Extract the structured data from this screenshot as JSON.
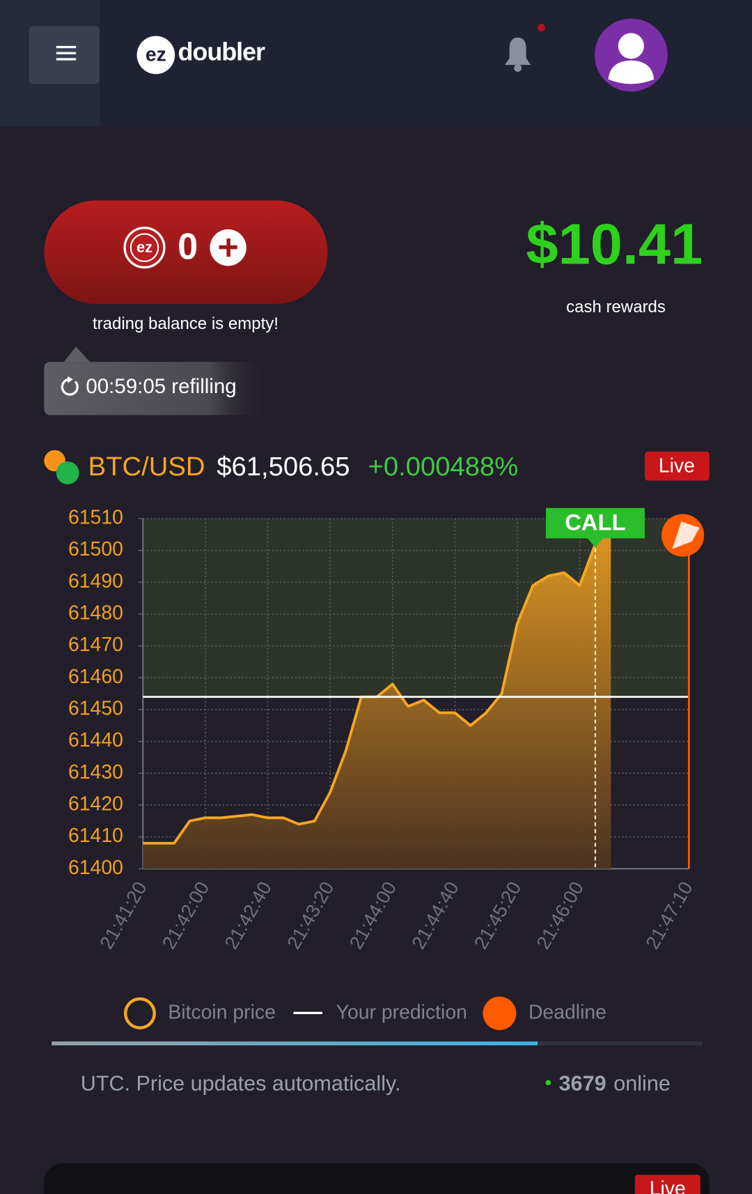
{
  "header": {
    "logo_mark": "ez",
    "logo_text": "doubler"
  },
  "balance": {
    "coin_label": "ez",
    "amount": 0,
    "message": "trading balance is empty!",
    "timer": "00:59:05 refilling"
  },
  "rewards": {
    "amount": "$10.41",
    "label": "cash rewards"
  },
  "ticker": {
    "pair": "BTC/USD",
    "price": "$61,506.65",
    "change": "+0.000488%",
    "badge": "Live"
  },
  "chart_data": {
    "type": "line",
    "x": [
      "21:41:20",
      "21:41:40",
      "21:41:50",
      "21:42:00",
      "21:42:10",
      "21:42:30",
      "21:42:40",
      "21:42:50",
      "21:43:00",
      "21:43:10",
      "21:43:20",
      "21:43:30",
      "21:43:40",
      "21:43:50",
      "21:44:00",
      "21:44:10",
      "21:44:20",
      "21:44:30",
      "21:44:40",
      "21:44:50",
      "21:45:00",
      "21:45:10",
      "21:45:20",
      "21:45:30",
      "21:45:40",
      "21:45:50",
      "21:46:00",
      "21:46:10",
      "21:46:20"
    ],
    "series": [
      {
        "name": "Bitcoin price",
        "color": "#f5a623",
        "values": [
          61408,
          61408,
          61415,
          61416,
          61416,
          61417,
          61416,
          61416,
          61414,
          61415,
          61424,
          61437,
          61454,
          61454,
          61458,
          61451,
          61453,
          61449,
          61449,
          61445,
          61449,
          61455,
          61477,
          61489,
          61492,
          61493,
          61489,
          61502,
          61509
        ]
      }
    ],
    "prediction": {
      "name": "Your prediction",
      "value": 61454,
      "color": "#ffffff"
    },
    "call": {
      "label": "CALL",
      "x": "21:46:10"
    },
    "deadline": {
      "name": "Deadline",
      "x": "21:47:10",
      "color": "#ff5a00"
    },
    "xlim": [
      "21:41:20",
      "21:47:10"
    ],
    "xticks": [
      "21:41:20",
      "21:42:00",
      "21:42:40",
      "21:43:20",
      "21:44:00",
      "21:44:40",
      "21:45:20",
      "21:46:00",
      "21:47:10"
    ],
    "ylim": [
      61400,
      61510
    ],
    "yticks": [
      61400,
      61410,
      61420,
      61430,
      61440,
      61450,
      61460,
      61470,
      61480,
      61490,
      61500,
      61510
    ],
    "grid": true
  },
  "footer": {
    "note": "UTC. Price updates automatically.",
    "online_count": 3679,
    "online_label": "online"
  },
  "next_card": {
    "badge": "Live"
  }
}
